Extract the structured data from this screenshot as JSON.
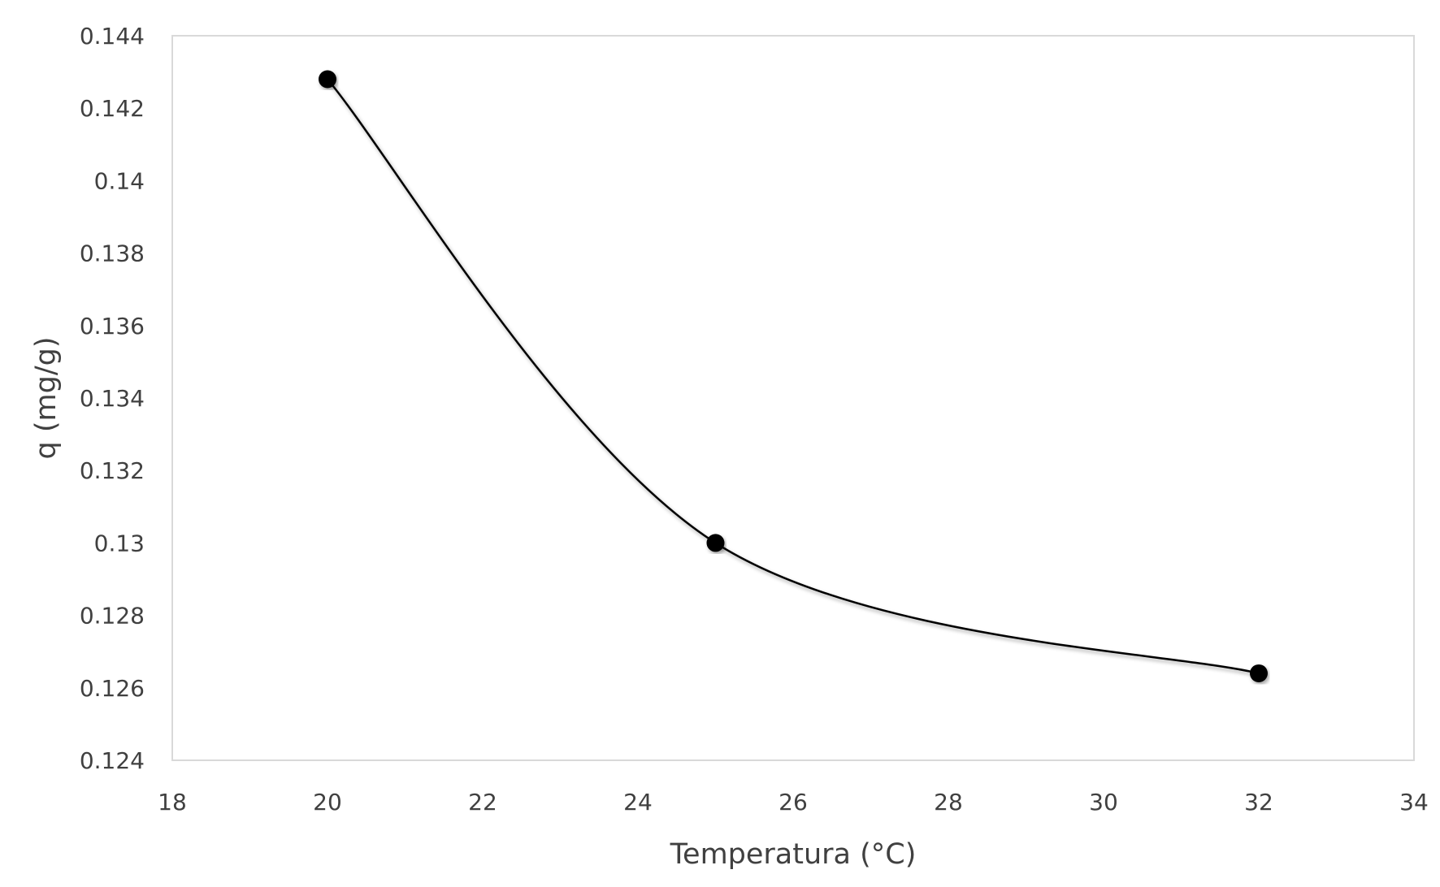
{
  "chart_data": {
    "type": "line",
    "title": "",
    "xlabel": "Temperatura (°C)",
    "ylabel": "q (mg/g)",
    "xlim": [
      18,
      34
    ],
    "ylim": [
      0.124,
      0.144
    ],
    "x_ticks": [
      "18",
      "20",
      "22",
      "24",
      "26",
      "28",
      "30",
      "32",
      "34"
    ],
    "y_ticks": [
      "0.124",
      "0.126",
      "0.128",
      "0.13",
      "0.132",
      "0.134",
      "0.136",
      "0.138",
      "0.14",
      "0.142",
      "0.144"
    ],
    "grid": false,
    "smooth": true,
    "series": [
      {
        "x": [
          20,
          25,
          32
        ],
        "values": [
          0.1428,
          0.13,
          0.1264
        ]
      }
    ],
    "colors": {
      "line": "#000000",
      "marker": "#000000",
      "frame": "#d9d9d9",
      "text": "#404040"
    }
  }
}
